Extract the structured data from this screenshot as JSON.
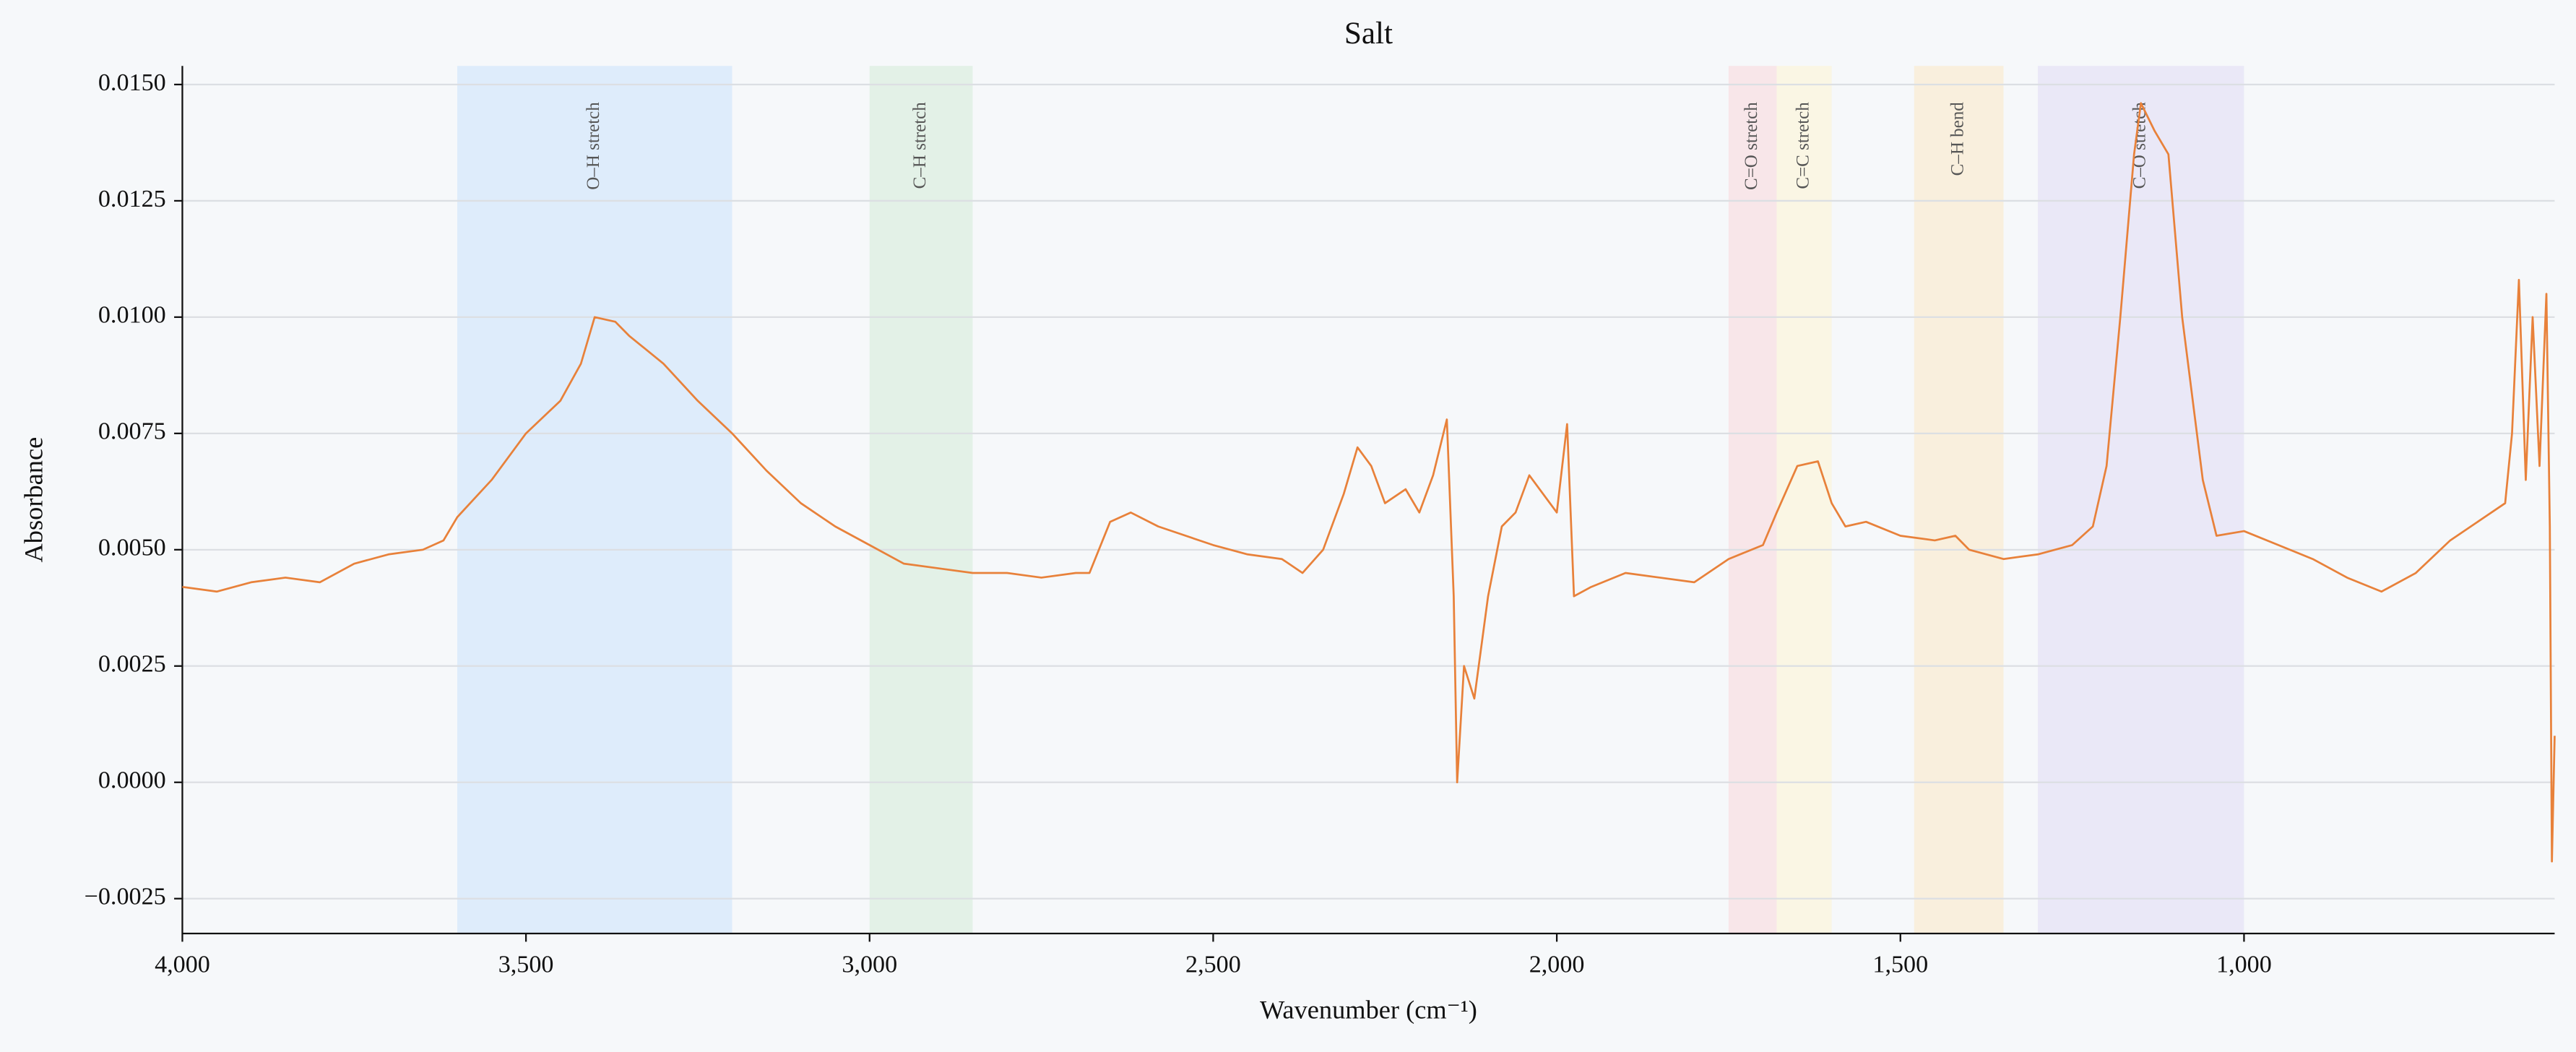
{
  "chart_data": {
    "type": "line",
    "title": "Salt",
    "xlabel": "Wavenumber (cm⁻¹)",
    "ylabel": "Absorbance",
    "xlim": [
      4000,
      548
    ],
    "ylim": [
      -0.00325,
      0.0154
    ],
    "xticks": [
      {
        "value": 4000,
        "label": "4,000"
      },
      {
        "value": 3500,
        "label": "3,500"
      },
      {
        "value": 3000,
        "label": "3,000"
      },
      {
        "value": 2500,
        "label": "2,500"
      },
      {
        "value": 2000,
        "label": "2,000"
      },
      {
        "value": 1500,
        "label": "1,500"
      },
      {
        "value": 1000,
        "label": "1,000"
      }
    ],
    "yticks": [
      {
        "value": -0.0025,
        "label": "−0.0025"
      },
      {
        "value": 0,
        "label": "0.0000"
      },
      {
        "value": 0.0025,
        "label": "0.0025"
      },
      {
        "value": 0.005,
        "label": "0.0050"
      },
      {
        "value": 0.0075,
        "label": "0.0075"
      },
      {
        "value": 0.01,
        "label": "0.0100"
      },
      {
        "value": 0.0125,
        "label": "0.0125"
      },
      {
        "value": 0.015,
        "label": "0.0150"
      }
    ],
    "grid": true,
    "color": "#e8813a",
    "bands": [
      {
        "label": "O–H stretch",
        "range": [
          3600,
          3200
        ],
        "color": "#d6e8fb"
      },
      {
        "label": "C–H stretch",
        "range": [
          3000,
          2850
        ],
        "color": "#dcefe0"
      },
      {
        "label": "C=O stretch",
        "range": [
          1750,
          1680
        ],
        "color": "#f8e0e3"
      },
      {
        "label": "C=C stretch",
        "range": [
          1680,
          1600
        ],
        "color": "#fbf6dc"
      },
      {
        "label": "C–H bend",
        "range": [
          1480,
          1350
        ],
        "color": "#f9ecd3"
      },
      {
        "label": "C–O stretch",
        "range": [
          1300,
          1000
        ],
        "color": "#e6e3f6"
      }
    ],
    "x": [
      4000,
      3950,
      3900,
      3850,
      3800,
      3750,
      3700,
      3650,
      3620,
      3600,
      3550,
      3500,
      3450,
      3420,
      3400,
      3370,
      3350,
      3300,
      3250,
      3200,
      3150,
      3100,
      3050,
      3000,
      2950,
      2900,
      2850,
      2800,
      2750,
      2700,
      2680,
      2650,
      2620,
      2580,
      2500,
      2450,
      2400,
      2370,
      2340,
      2310,
      2290,
      2270,
      2250,
      2220,
      2200,
      2180,
      2160,
      2150,
      2145,
      2135,
      2120,
      2100,
      2080,
      2060,
      2040,
      2020,
      2000,
      1985,
      1975,
      1950,
      1900,
      1850,
      1800,
      1750,
      1700,
      1680,
      1650,
      1620,
      1600,
      1580,
      1550,
      1500,
      1450,
      1420,
      1400,
      1350,
      1300,
      1250,
      1220,
      1200,
      1180,
      1160,
      1150,
      1130,
      1110,
      1090,
      1060,
      1040,
      1000,
      950,
      900,
      850,
      800,
      750,
      700,
      650,
      620,
      610,
      600,
      590,
      580,
      570,
      560,
      555,
      552,
      548
    ],
    "values": [
      0.0042,
      0.0041,
      0.0043,
      0.0044,
      0.0043,
      0.0047,
      0.0049,
      0.005,
      0.0052,
      0.0057,
      0.0065,
      0.0075,
      0.0082,
      0.009,
      0.01,
      0.0099,
      0.0096,
      0.009,
      0.0082,
      0.0075,
      0.0067,
      0.006,
      0.0055,
      0.0051,
      0.0047,
      0.0046,
      0.0045,
      0.0045,
      0.0044,
      0.0045,
      0.0045,
      0.0056,
      0.0058,
      0.0055,
      0.0051,
      0.0049,
      0.0048,
      0.0045,
      0.005,
      0.0062,
      0.0072,
      0.0068,
      0.006,
      0.0063,
      0.0058,
      0.0066,
      0.0078,
      0.004,
      0.0,
      0.0025,
      0.0018,
      0.004,
      0.0055,
      0.0058,
      0.0066,
      0.0062,
      0.0058,
      0.0077,
      0.004,
      0.0042,
      0.0045,
      0.0044,
      0.0043,
      0.0048,
      0.0051,
      0.0058,
      0.0068,
      0.0069,
      0.006,
      0.0055,
      0.0056,
      0.0053,
      0.0052,
      0.0053,
      0.005,
      0.0048,
      0.0049,
      0.0051,
      0.0055,
      0.0068,
      0.01,
      0.0135,
      0.0146,
      0.014,
      0.0135,
      0.01,
      0.0065,
      0.0053,
      0.0054,
      0.0051,
      0.0048,
      0.0044,
      0.0041,
      0.0045,
      0.0052,
      0.0057,
      0.006,
      0.0075,
      0.0108,
      0.0065,
      0.01,
      0.0068,
      0.0105,
      0.0055,
      -0.0017,
      0.001
    ]
  }
}
